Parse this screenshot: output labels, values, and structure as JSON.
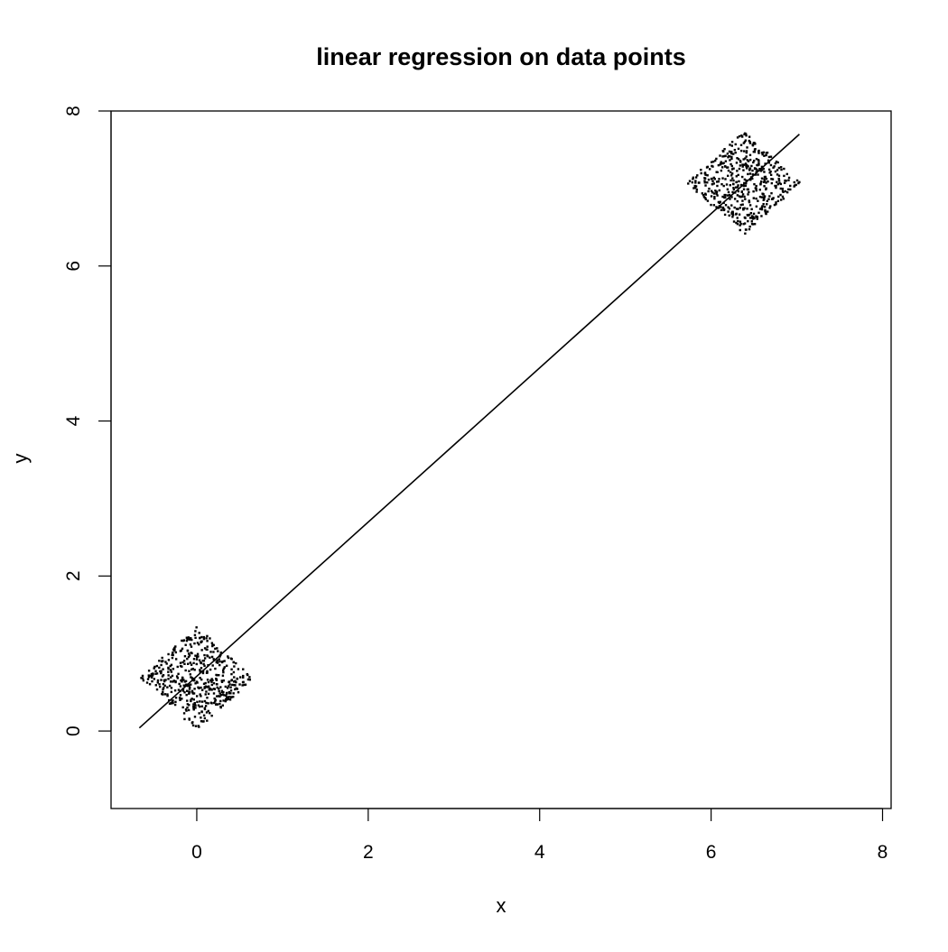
{
  "chart_data": {
    "type": "scatter",
    "title": "linear regression on data points",
    "xlabel": "x",
    "ylabel": "y",
    "xlim": [
      -1.0,
      8.1
    ],
    "ylim": [
      -1.0,
      8.0
    ],
    "x_ticks": [
      0,
      2,
      4,
      6,
      8
    ],
    "y_ticks": [
      0,
      2,
      4,
      6,
      8
    ],
    "grid": false,
    "legend": "none",
    "point_color": "#000000",
    "line_color": "#000000",
    "clusters": [
      {
        "center": [
          0,
          0.68
        ],
        "x_spread": 0.67,
        "y_spread": 0.67,
        "count": 500
      },
      {
        "center": [
          6.38,
          7.07
        ],
        "x_spread": 0.67,
        "y_spread": 0.67,
        "count": 500
      }
    ],
    "series": [
      {
        "type": "line",
        "x": [
          -0.67,
          7.03
        ],
        "y": [
          0.04,
          7.7
        ]
      }
    ]
  }
}
